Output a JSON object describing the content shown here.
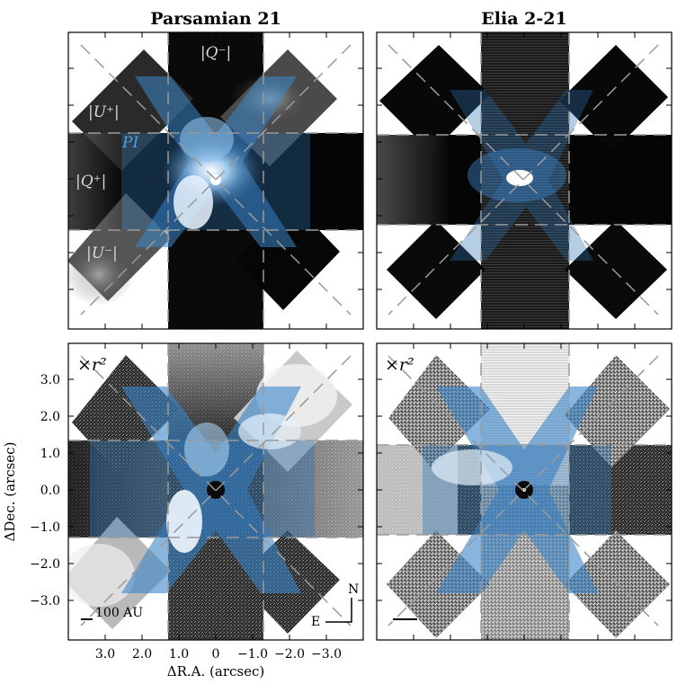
{
  "columns": {
    "left_title": "Parsamian 21",
    "right_title": "Elia 2-21"
  },
  "panel_labels": {
    "q_minus": "|Q⁻|",
    "u_plus": "|U⁺|",
    "pi": "PI",
    "q_plus": "|Q⁺|",
    "u_minus": "|U⁻|",
    "r2_left": "×r²",
    "r2_right": "×r²"
  },
  "axes": {
    "xlabel": "ΔR.A. (arcsec)",
    "ylabel": "ΔDec. (arcsec)",
    "x_ticks": [
      "3.0",
      "2.0",
      "1.0",
      "0",
      "−1.0",
      "−2.0",
      "−3.0"
    ],
    "y_ticks": [
      "3.0",
      "2.0",
      "1.0",
      "0.0",
      "−1.0",
      "−2.0",
      "−3.0"
    ],
    "x_values": [
      3.0,
      2.0,
      1.0,
      0,
      -1.0,
      -2.0,
      -3.0
    ],
    "y_values": [
      3.0,
      2.0,
      1.0,
      0.0,
      -1.0,
      -2.0,
      -3.0
    ]
  },
  "scalebar": {
    "label": "100 AU"
  },
  "compass": {
    "north": "N",
    "east": "E"
  },
  "colors": {
    "pi_blue": "#3b86c8",
    "background": "#ffffff",
    "frame": "#000000"
  }
}
